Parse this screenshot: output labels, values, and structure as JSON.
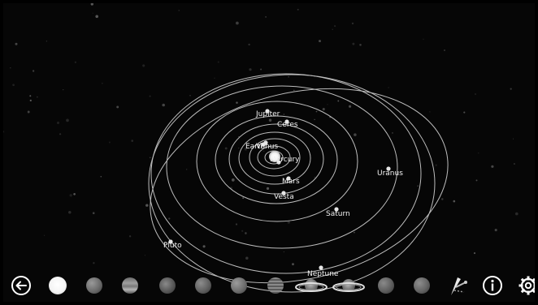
{
  "scene": {
    "type": "solar-system-3d-view",
    "planets": [
      {
        "name": "Jupiter"
      },
      {
        "name": "Ceres"
      },
      {
        "name": "Earth"
      },
      {
        "name": "Venus"
      },
      {
        "name": "Mercury"
      },
      {
        "name": "Mars"
      },
      {
        "name": "Vesta"
      },
      {
        "name": "Uranus"
      },
      {
        "name": "Saturn"
      },
      {
        "name": "Pluto"
      },
      {
        "name": "Neptune"
      }
    ]
  },
  "toolbar": {
    "items": [
      {
        "name": "back",
        "icon": "arrow-left-icon"
      },
      {
        "name": "sun",
        "icon": "sun-icon"
      },
      {
        "name": "mercury",
        "icon": "mercury-icon"
      },
      {
        "name": "venus",
        "icon": "venus-icon"
      },
      {
        "name": "earth",
        "icon": "earth-icon"
      },
      {
        "name": "mars",
        "icon": "mars-icon"
      },
      {
        "name": "moon",
        "icon": "moon-icon"
      },
      {
        "name": "jupiter",
        "icon": "jupiter-icon"
      },
      {
        "name": "saturn",
        "icon": "saturn-icon"
      },
      {
        "name": "uranus",
        "icon": "uranus-icon"
      },
      {
        "name": "neptune",
        "icon": "neptune-icon"
      },
      {
        "name": "pluto",
        "icon": "pluto-icon"
      },
      {
        "name": "spacecraft",
        "icon": "spacecraft-icon"
      },
      {
        "name": "info",
        "icon": "info-icon"
      },
      {
        "name": "settings",
        "icon": "gear-icon"
      }
    ]
  },
  "colors": {
    "background": "#060606",
    "orbit": "#bdbdbd",
    "label": "#f2f2f2"
  }
}
